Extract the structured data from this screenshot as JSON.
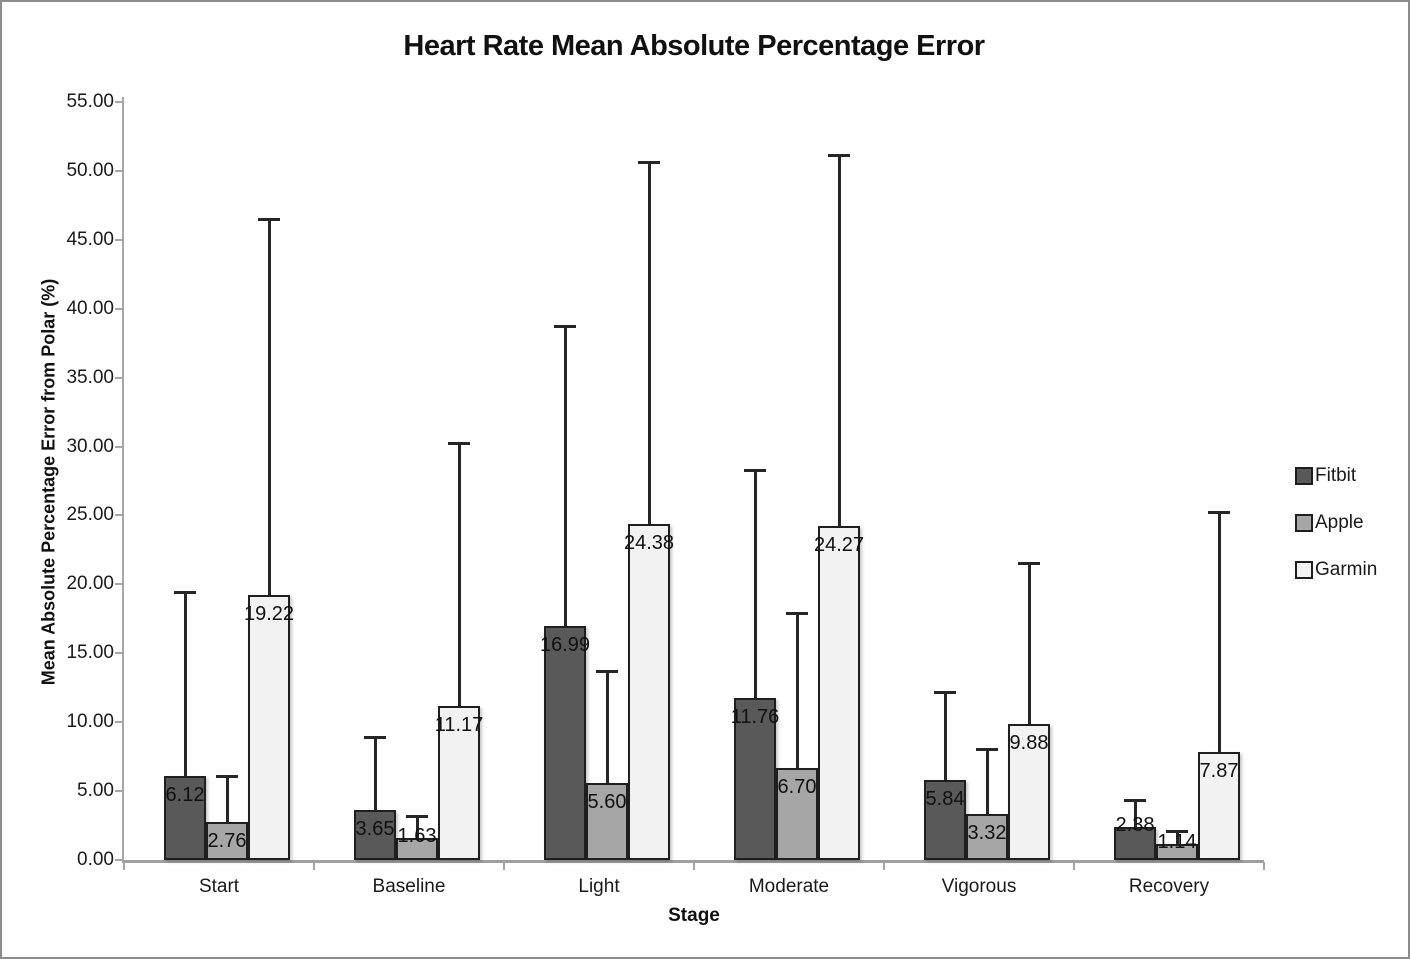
{
  "title": "Heart Rate Mean Absolute Percentage Error",
  "chart_data": {
    "type": "bar",
    "title": "Heart Rate Mean Absolute Percentage Error",
    "xlabel": "Stage",
    "ylabel": "Mean Absolute Percentage Error from Polar (%)",
    "ylim": [
      0,
      55
    ],
    "ytick_step": 5,
    "ytick_decimals": 2,
    "grid": false,
    "legend_position": "right",
    "categories": [
      "Start",
      "Baseline",
      "Light",
      "Moderate",
      "Vigorous",
      "Recovery"
    ],
    "series": [
      {
        "name": "Fitbit",
        "color": "#595959",
        "values": [
          6.12,
          3.65,
          16.99,
          11.76,
          5.84,
          2.38
        ],
        "error_top": [
          19.5,
          9.0,
          38.8,
          28.4,
          12.3,
          4.4
        ]
      },
      {
        "name": "Apple",
        "color": "#a6a6a6",
        "values": [
          2.76,
          1.63,
          5.6,
          6.7,
          3.32,
          1.14
        ],
        "error_top": [
          6.2,
          3.3,
          13.8,
          18.0,
          8.1,
          2.2
        ]
      },
      {
        "name": "Garmin",
        "color": "#f2f2f2",
        "values": [
          19.22,
          11.17,
          24.38,
          24.27,
          9.88,
          7.87
        ],
        "error_top": [
          46.6,
          30.3,
          50.7,
          51.2,
          21.6,
          25.3
        ]
      }
    ]
  },
  "colors": {
    "bar_border": "#1f1f1f",
    "error_bar": "#262626",
    "axis_line": "#a6a6a6",
    "outer_border": "#8c8c8c"
  }
}
